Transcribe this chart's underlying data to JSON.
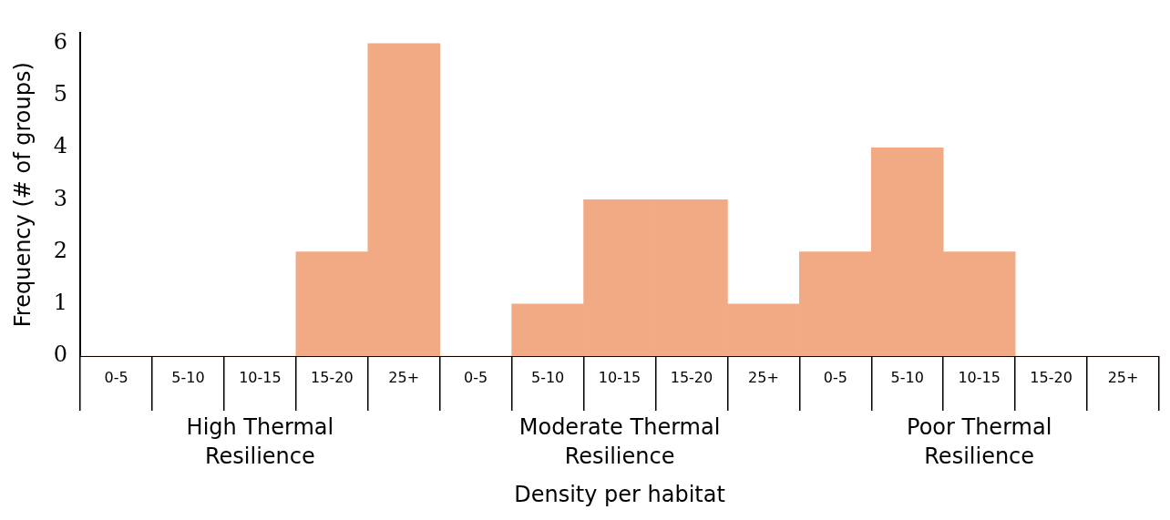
{
  "chart_data": {
    "type": "bar",
    "categories": [
      "0-5",
      "5-10",
      "10-15",
      "15-20",
      "25+",
      "0-5",
      "5-10",
      "10-15",
      "15-20",
      "25+",
      "0-5",
      "5-10",
      "10-15",
      "15-20",
      "25+"
    ],
    "values": [
      0,
      0,
      0,
      2,
      6,
      0,
      1,
      3,
      3,
      1,
      2,
      4,
      2,
      0,
      0
    ],
    "color": "#f2aa84",
    "ylim": [
      0,
      6.2
    ],
    "yticks": [
      0,
      1,
      2,
      3,
      4,
      5,
      6
    ],
    "ylabel": "Frequency (# of groups)",
    "xlabel": "Density per habitat",
    "annotations": [
      "High Thermal Resilience",
      "Moderate Thermal Resilience",
      "Poor Thermal Resilience"
    ],
    "grid": false,
    "legend": false
  }
}
